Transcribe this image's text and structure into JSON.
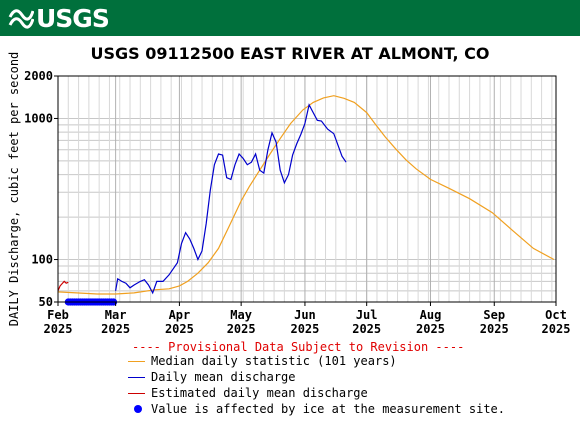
{
  "header": {
    "logo_text": "USGS",
    "brand_color": "#00703c"
  },
  "chart_data": {
    "type": "line",
    "title": "USGS 09112500 EAST RIVER AT ALMONT, CO",
    "ylabel": "DAILY Discharge, cubic feet per second",
    "xlabel": "",
    "y_scale": "log",
    "ylim": [
      50,
      2000
    ],
    "y_ticks": [
      {
        "value": 50,
        "label": "50"
      },
      {
        "value": 100,
        "label": "100"
      },
      {
        "value": 1000,
        "label": "1000"
      },
      {
        "value": 2000,
        "label": "2000"
      }
    ],
    "xlim": [
      "2025-02-01",
      "2025-10-01"
    ],
    "x_ticks": [
      {
        "date": "2025-02-01",
        "month": "Feb",
        "year": "2025"
      },
      {
        "date": "2025-03-01",
        "month": "Mar",
        "year": "2025"
      },
      {
        "date": "2025-04-01",
        "month": "Apr",
        "year": "2025"
      },
      {
        "date": "2025-05-01",
        "month": "May",
        "year": "2025"
      },
      {
        "date": "2025-06-01",
        "month": "Jun",
        "year": "2025"
      },
      {
        "date": "2025-07-01",
        "month": "Jul",
        "year": "2025"
      },
      {
        "date": "2025-08-01",
        "month": "Aug",
        "year": "2025"
      },
      {
        "date": "2025-09-01",
        "month": "Sep",
        "year": "2025"
      },
      {
        "date": "2025-10-01",
        "month": "Oct",
        "year": "2025"
      }
    ],
    "grid": true,
    "notice": "---- Provisional Data Subject to Revision ----",
    "series": [
      {
        "name": "Median daily statistic (101 years)",
        "color": "#f0a020",
        "points": [
          [
            "2025-02-01",
            59
          ],
          [
            "2025-02-10",
            58
          ],
          [
            "2025-02-20",
            57
          ],
          [
            "2025-03-01",
            57
          ],
          [
            "2025-03-10",
            58
          ],
          [
            "2025-03-20",
            61
          ],
          [
            "2025-03-27",
            62
          ],
          [
            "2025-04-01",
            65
          ],
          [
            "2025-04-05",
            70
          ],
          [
            "2025-04-10",
            80
          ],
          [
            "2025-04-15",
            95
          ],
          [
            "2025-04-20",
            120
          ],
          [
            "2025-04-25",
            170
          ],
          [
            "2025-05-01",
            260
          ],
          [
            "2025-05-05",
            330
          ],
          [
            "2025-05-10",
            430
          ],
          [
            "2025-05-15",
            560
          ],
          [
            "2025-05-20",
            720
          ],
          [
            "2025-05-25",
            920
          ],
          [
            "2025-05-31",
            1150
          ],
          [
            "2025-06-05",
            1300
          ],
          [
            "2025-06-10",
            1400
          ],
          [
            "2025-06-15",
            1450
          ],
          [
            "2025-06-20",
            1390
          ],
          [
            "2025-06-25",
            1300
          ],
          [
            "2025-07-01",
            1100
          ],
          [
            "2025-07-05",
            920
          ],
          [
            "2025-07-10",
            740
          ],
          [
            "2025-07-15",
            610
          ],
          [
            "2025-07-20",
            510
          ],
          [
            "2025-07-25",
            440
          ],
          [
            "2025-08-01",
            370
          ],
          [
            "2025-08-10",
            320
          ],
          [
            "2025-08-20",
            270
          ],
          [
            "2025-08-31",
            215
          ],
          [
            "2025-09-10",
            160
          ],
          [
            "2025-09-20",
            120
          ],
          [
            "2025-09-30",
            100
          ]
        ]
      },
      {
        "name": "Daily mean discharge",
        "color": "#0000cc",
        "points": [
          [
            "2025-03-01",
            60
          ],
          [
            "2025-03-02",
            73
          ],
          [
            "2025-03-04",
            70
          ],
          [
            "2025-03-06",
            68
          ],
          [
            "2025-03-08",
            63
          ],
          [
            "2025-03-10",
            66
          ],
          [
            "2025-03-13",
            70
          ],
          [
            "2025-03-15",
            72
          ],
          [
            "2025-03-17",
            66
          ],
          [
            "2025-03-19",
            58
          ],
          [
            "2025-03-21",
            70
          ],
          [
            "2025-03-24",
            70
          ],
          [
            "2025-03-27",
            78
          ],
          [
            "2025-03-31",
            95
          ],
          [
            "2025-04-02",
            130
          ],
          [
            "2025-04-04",
            155
          ],
          [
            "2025-04-06",
            140
          ],
          [
            "2025-04-08",
            120
          ],
          [
            "2025-04-10",
            100
          ],
          [
            "2025-04-12",
            115
          ],
          [
            "2025-04-14",
            180
          ],
          [
            "2025-04-16",
            310
          ],
          [
            "2025-04-18",
            470
          ],
          [
            "2025-04-20",
            560
          ],
          [
            "2025-04-22",
            550
          ],
          [
            "2025-04-24",
            380
          ],
          [
            "2025-04-26",
            370
          ],
          [
            "2025-04-28",
            470
          ],
          [
            "2025-04-30",
            560
          ],
          [
            "2025-05-02",
            520
          ],
          [
            "2025-05-04",
            470
          ],
          [
            "2025-05-06",
            490
          ],
          [
            "2025-05-08",
            560
          ],
          [
            "2025-05-10",
            430
          ],
          [
            "2025-05-12",
            410
          ],
          [
            "2025-05-14",
            600
          ],
          [
            "2025-05-16",
            790
          ],
          [
            "2025-05-18",
            680
          ],
          [
            "2025-05-20",
            430
          ],
          [
            "2025-05-22",
            350
          ],
          [
            "2025-05-24",
            400
          ],
          [
            "2025-05-26",
            550
          ],
          [
            "2025-05-28",
            660
          ],
          [
            "2025-05-30",
            770
          ],
          [
            "2025-06-01",
            920
          ],
          [
            "2025-06-03",
            1250
          ],
          [
            "2025-06-05",
            1100
          ],
          [
            "2025-06-07",
            970
          ],
          [
            "2025-06-09",
            960
          ],
          [
            "2025-06-12",
            840
          ],
          [
            "2025-06-15",
            780
          ],
          [
            "2025-06-17",
            650
          ],
          [
            "2025-06-19",
            540
          ],
          [
            "2025-06-21",
            490
          ]
        ]
      },
      {
        "name": "Estimated daily mean discharge",
        "color": "#cc0000",
        "points": [
          [
            "2025-02-01",
            60
          ],
          [
            "2025-02-02",
            65
          ],
          [
            "2025-02-04",
            70
          ],
          [
            "2025-02-05",
            68
          ],
          [
            "2025-02-06",
            69
          ]
        ]
      }
    ],
    "markers": {
      "name": "Value is affected by ice at the measurement site.",
      "color": "#0000ff",
      "y": 50,
      "start": "2025-02-06",
      "end": "2025-02-28"
    }
  }
}
